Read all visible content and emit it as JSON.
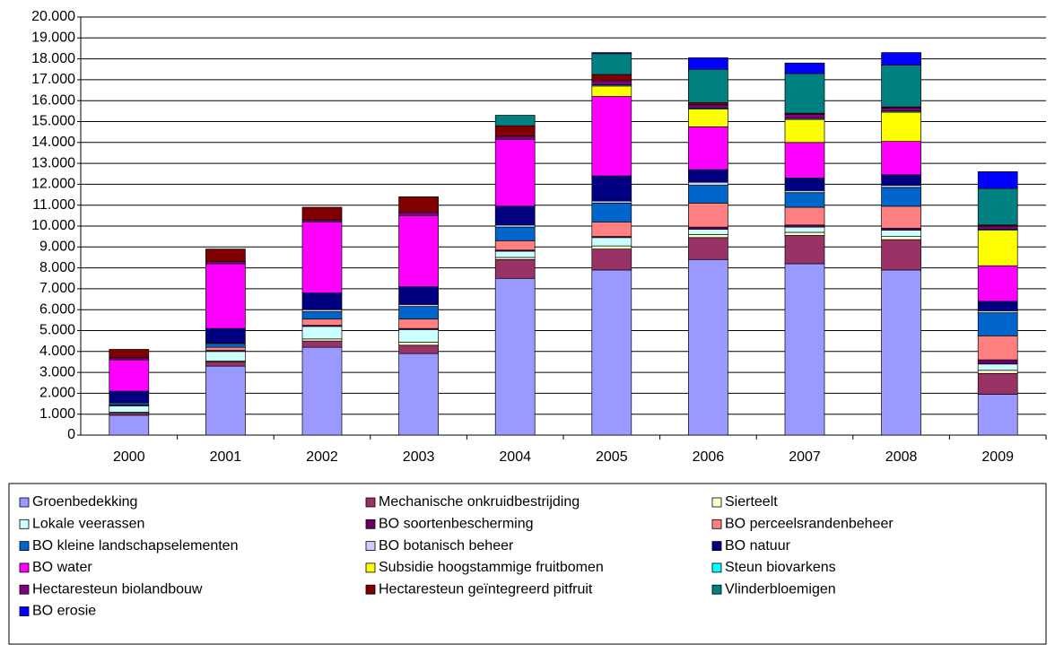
{
  "chart_data": {
    "type": "stacked_bar",
    "categories": [
      "2000",
      "2001",
      "2002",
      "2003",
      "2004",
      "2005",
      "2006",
      "2007",
      "2008",
      "2009"
    ],
    "ylim": [
      0,
      20000
    ],
    "yticks": [
      0,
      {
        "value": 1000,
        "label": "1.000"
      },
      {
        "value": 2000,
        "label": "2.000"
      },
      {
        "value": 3000,
        "label": "3.000"
      },
      {
        "value": 4000,
        "label": "4.000"
      },
      {
        "value": 5000,
        "label": "5.000"
      },
      {
        "value": 6000,
        "label": "6.000"
      },
      {
        "value": 7000,
        "label": "7.000"
      },
      {
        "value": 8000,
        "label": "8.000"
      },
      {
        "value": 9000,
        "label": "9.000"
      },
      {
        "value": 10000,
        "label": "10.000"
      },
      {
        "value": 11000,
        "label": "11.000"
      },
      {
        "value": 12000,
        "label": "12.000"
      },
      {
        "value": 13000,
        "label": "13.000"
      },
      {
        "value": 14000,
        "label": "14.000"
      },
      {
        "value": 15000,
        "label": "15.000"
      },
      {
        "value": 16000,
        "label": "16.000"
      },
      {
        "value": 17000,
        "label": "17.000"
      },
      {
        "value": 18000,
        "label": "18.000"
      },
      {
        "value": 19000,
        "label": "19.000"
      },
      {
        "value": 20000,
        "label": "20.000"
      }
    ],
    "grid": true,
    "legend": "bottom",
    "series": [
      {
        "name": "Groenbedekking",
        "color": "#9999ff",
        "values": [
          950,
          3300,
          4200,
          3900,
          7500,
          7900,
          8400,
          8200,
          7900,
          1950
        ]
      },
      {
        "name": "Mechanische onkruidbestrijding",
        "color": "#993366",
        "values": [
          100,
          200,
          300,
          400,
          900,
          1000,
          1050,
          1350,
          1450,
          1000
        ]
      },
      {
        "name": "Sierteelt",
        "color": "#ffffcc",
        "values": [
          50,
          50,
          100,
          150,
          100,
          150,
          150,
          150,
          150,
          150
        ]
      },
      {
        "name": "Lokale veerassen",
        "color": "#ccffff",
        "values": [
          300,
          450,
          600,
          600,
          300,
          400,
          250,
          250,
          300,
          300
        ]
      },
      {
        "name": "BO soortenbescherming",
        "color": "#660066",
        "values": [
          50,
          50,
          50,
          50,
          50,
          50,
          100,
          100,
          100,
          200
        ]
      },
      {
        "name": "BO perceelsrandenbeheer",
        "color": "#ff8080",
        "values": [
          0,
          150,
          300,
          450,
          450,
          700,
          1150,
          850,
          1050,
          1150
        ]
      },
      {
        "name": "BO kleine landschapselementen",
        "color": "#0066cc",
        "values": [
          100,
          150,
          350,
          600,
          650,
          900,
          850,
          700,
          900,
          1100
        ]
      },
      {
        "name": "BO botanisch beheer",
        "color": "#ccccff",
        "values": [
          0,
          50,
          100,
          100,
          100,
          100,
          150,
          100,
          100,
          100
        ]
      },
      {
        "name": "BO natuur",
        "color": "#000080",
        "values": [
          550,
          700,
          800,
          850,
          900,
          1200,
          600,
          600,
          500,
          450
        ]
      },
      {
        "name": "BO water",
        "color": "#ff00ff",
        "values": [
          1500,
          3100,
          3400,
          3400,
          3200,
          3800,
          2050,
          1700,
          1600,
          1700
        ]
      },
      {
        "name": "Subsidie hoogstammige fruitbomen",
        "color": "#ffff00",
        "values": [
          0,
          0,
          0,
          0,
          0,
          500,
          850,
          1100,
          1400,
          1700
        ]
      },
      {
        "name": "Steun biovarkens",
        "color": "#00ffff",
        "values": [
          0,
          0,
          0,
          0,
          0,
          50,
          50,
          50,
          50,
          50
        ]
      },
      {
        "name": "Hectaresteun biolandbouw",
        "color": "#800080",
        "values": [
          100,
          100,
          100,
          150,
          150,
          200,
          150,
          200,
          150,
          150
        ]
      },
      {
        "name": "Hectaresteun geïntegreerd pitfruit",
        "color": "#800000",
        "values": [
          400,
          600,
          600,
          750,
          500,
          300,
          100,
          50,
          50,
          50
        ]
      },
      {
        "name": "Vlinderbloemigen",
        "color": "#008080",
        "values": [
          0,
          0,
          0,
          0,
          500,
          1000,
          1600,
          1900,
          2000,
          1750
        ]
      },
      {
        "name": "BO erosie",
        "color": "#0000ff",
        "values": [
          0,
          0,
          0,
          0,
          0,
          50,
          550,
          500,
          600,
          800
        ]
      }
    ]
  }
}
